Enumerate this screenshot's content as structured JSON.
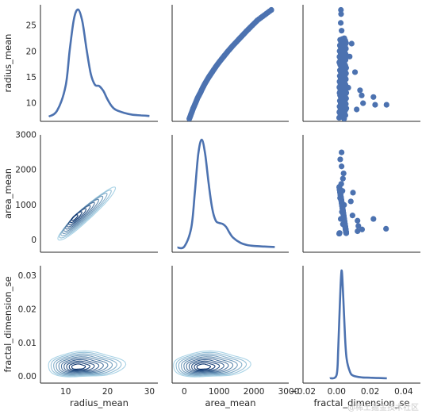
{
  "chart_data": {
    "type": "pairplot",
    "variables": [
      "radius_mean",
      "area_mean",
      "fractal_dimension_se"
    ],
    "upper": "scatter",
    "diagonal": "kde",
    "lower": "kde-contour",
    "grid": false,
    "axes": {
      "radius_mean": {
        "range": [
          4,
          32
        ],
        "ticks": [
          "10",
          "20",
          "30"
        ],
        "tick_values": [
          10,
          20,
          30
        ],
        "label": "radius_mean",
        "row_range": [
          6.5,
          29
        ],
        "row_ticks": [
          "10",
          "15",
          "20",
          "25"
        ],
        "row_tick_values": [
          10,
          15,
          20,
          25
        ]
      },
      "area_mean": {
        "range": [
          -350,
          3000
        ],
        "ticks": [
          "0",
          "1000",
          "2000",
          "3000"
        ],
        "tick_values": [
          0,
          1000,
          2000,
          3000
        ],
        "label": "area_mean",
        "row_ticks": [
          "0",
          "1000",
          "2000",
          "3000"
        ]
      },
      "fractal_dimension_se": {
        "range": [
          -0.02,
          0.05
        ],
        "ticks": [
          "−0.02",
          "0.00",
          "0.02",
          "0.04"
        ],
        "tick_values": [
          -0.02,
          0.0,
          0.02,
          0.04
        ],
        "label": "fractal_dimension_se",
        "row_range": [
          -0.002,
          0.033
        ],
        "row_ticks": [
          "0.00",
          "0.01",
          "0.02",
          "0.03"
        ],
        "row_tick_values": [
          0.0,
          0.01,
          0.02,
          0.03
        ]
      }
    },
    "diagonal_density": {
      "radius_mean": {
        "x": [
          6,
          8,
          10,
          11,
          12,
          13,
          14,
          15,
          16,
          17,
          18,
          19,
          20,
          21,
          22,
          24,
          26,
          28,
          30
        ],
        "density": [
          0.0,
          0.01,
          0.05,
          0.11,
          0.16,
          0.175,
          0.155,
          0.11,
          0.07,
          0.052,
          0.05,
          0.042,
          0.028,
          0.017,
          0.011,
          0.006,
          0.003,
          0.002,
          0.001
        ]
      },
      "area_mean": {
        "x": [
          -200,
          0,
          200,
          300,
          400,
          500,
          600,
          700,
          800,
          900,
          1000,
          1100,
          1200,
          1300,
          1400,
          1600,
          1800,
          2000,
          2300,
          2600
        ],
        "density": [
          0.0,
          2e-05,
          0.0004,
          0.0011,
          0.0019,
          0.0022,
          0.0019,
          0.0013,
          0.0008,
          0.00055,
          0.0005,
          0.00048,
          0.00042,
          0.0003,
          0.0002,
          0.0001,
          5e-05,
          3e-05,
          2e-05,
          1e-05
        ]
      },
      "fractal_dimension_se": {
        "x": [
          -0.004,
          0.0,
          0.001,
          0.002,
          0.003,
          0.004,
          0.005,
          0.006,
          0.008,
          0.01,
          0.015,
          0.02,
          0.025,
          0.03
        ],
        "density": [
          0,
          10,
          90,
          230,
          330,
          250,
          130,
          60,
          20,
          8,
          3,
          2,
          1,
          0
        ]
      }
    },
    "scatter": {
      "radius_vs_area": [
        [
          7,
          144
        ],
        [
          8,
          200
        ],
        [
          9,
          255
        ],
        [
          10,
          320
        ],
        [
          11,
          380
        ],
        [
          12,
          460
        ],
        [
          13,
          530
        ],
        [
          14,
          610
        ],
        [
          15,
          700
        ],
        [
          16,
          800
        ],
        [
          17,
          900
        ],
        [
          18,
          1010
        ],
        [
          19,
          1130
        ],
        [
          20,
          1250
        ],
        [
          21,
          1380
        ],
        [
          22,
          1520
        ],
        [
          23,
          1660
        ],
        [
          24,
          1800
        ],
        [
          25,
          1950
        ],
        [
          26,
          2100
        ],
        [
          27,
          2300
        ],
        [
          28,
          2500
        ]
      ],
      "radius_vs_fractal_dimension": [
        [
          0.0026,
          28
        ],
        [
          0.0027,
          27.2
        ],
        [
          0.0025,
          25.5
        ],
        [
          0.003,
          24
        ],
        [
          0.0028,
          22
        ],
        [
          0.0035,
          21
        ],
        [
          0.009,
          21.5
        ],
        [
          0.0022,
          20
        ],
        [
          0.0045,
          18.5
        ],
        [
          0.0032,
          17
        ],
        [
          0.0025,
          15
        ],
        [
          0.0038,
          14
        ],
        [
          0.007,
          13
        ],
        [
          0.0018,
          12
        ],
        [
          0.0032,
          11
        ],
        [
          0.0048,
          10
        ],
        [
          0.0058,
          9
        ],
        [
          0.0022,
          8.5
        ],
        [
          0.0033,
          7.5
        ],
        [
          0.0045,
          7
        ],
        [
          0.0078,
          19
        ],
        [
          0.011,
          16
        ],
        [
          0.014,
          12.5
        ],
        [
          0.015,
          11.5
        ],
        [
          0.0158,
          10
        ],
        [
          0.022,
          11.2
        ],
        [
          0.023,
          9.7
        ],
        [
          0.0298,
          9.7
        ],
        [
          0.012,
          8.8
        ]
      ],
      "area_vs_fractal_dimension": [
        [
          0.003,
          2500
        ],
        [
          0.0022,
          2300
        ],
        [
          0.003,
          2100
        ],
        [
          0.0042,
          1900
        ],
        [
          0.0038,
          1750
        ],
        [
          0.0028,
          1600
        ],
        [
          0.0035,
          1400
        ],
        [
          0.0021,
          1200
        ],
        [
          0.0045,
          1000
        ],
        [
          0.0032,
          800
        ],
        [
          0.0025,
          600
        ],
        [
          0.0038,
          450
        ],
        [
          0.0055,
          300
        ],
        [
          0.0018,
          200
        ],
        [
          0.0098,
          1350
        ],
        [
          0.0085,
          1100
        ],
        [
          0.0095,
          700
        ],
        [
          0.0125,
          550
        ],
        [
          0.013,
          400
        ],
        [
          0.0152,
          300
        ],
        [
          0.022,
          600
        ],
        [
          0.0295,
          320
        ],
        [
          0.0125,
          250
        ]
      ]
    },
    "kde_contour_centers": {
      "radius_vs_area": {
        "x": 13,
        "y": 560,
        "direction_slope": 95
      },
      "radius_vs_fractal_dimension": {
        "x": 12.8,
        "y": 0.0028
      },
      "area_vs_fractal_dimension": {
        "x": 520,
        "y": 0.0028
      }
    },
    "palette": {
      "line": "#4c72b0",
      "points": "#4c72b0",
      "contour_light": "#a9d3e6",
      "contour_dark": "#08306b",
      "spine": "#262626"
    }
  },
  "watermark": "@稀土掘金技术社区"
}
